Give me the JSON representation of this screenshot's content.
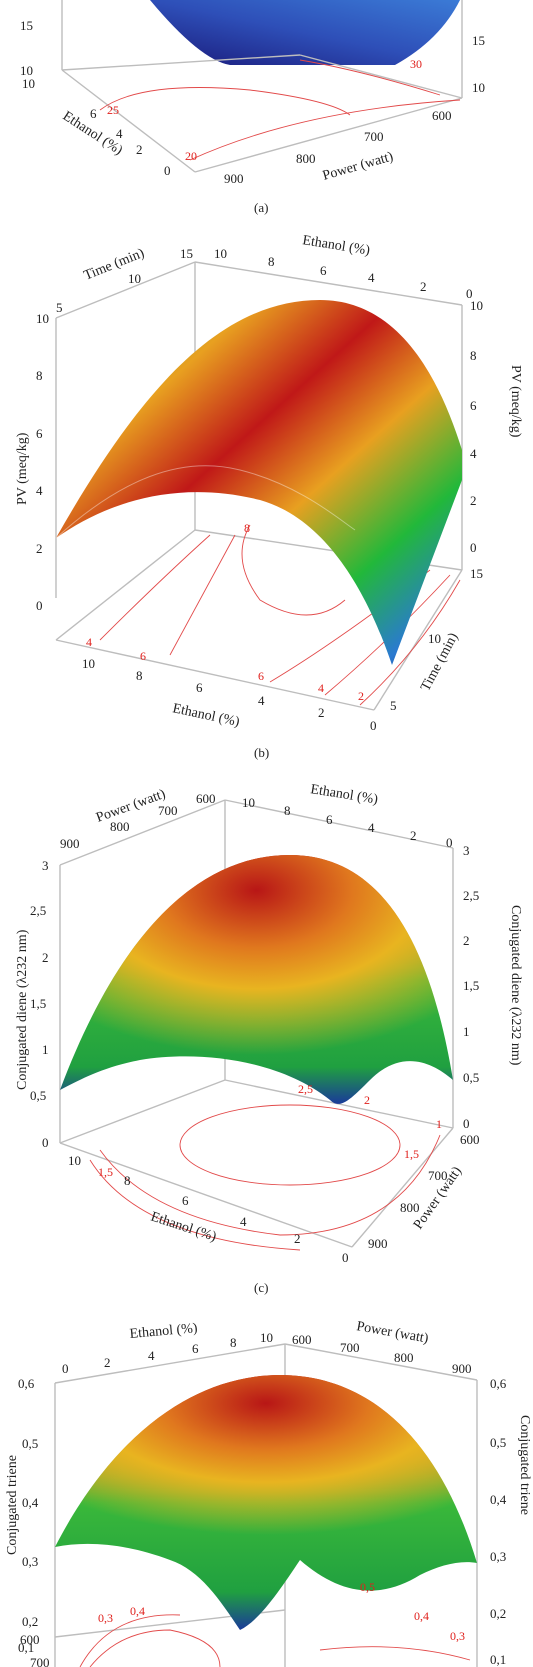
{
  "chart_data": [
    {
      "type": "surface",
      "caption": "(a)",
      "xlabel": "Ethanol (%)",
      "ylabel": "Power (watt)",
      "z_ticks": [
        "15",
        "10"
      ],
      "x_ticks": [
        "10",
        "6",
        "4",
        "2",
        "0"
      ],
      "y_ticks": [
        "900",
        "800",
        "700",
        "600"
      ],
      "right_z_ticks": [
        "15",
        "10"
      ],
      "contour_labels": [
        "30",
        "25",
        "20"
      ]
    },
    {
      "type": "surface",
      "caption": "(b)",
      "zlabel": "PV (meq/kg)",
      "xlabel": "Ethanol (%)",
      "ylabel": "Time (min)",
      "z_ticks": [
        "10",
        "8",
        "6",
        "4",
        "2",
        "0"
      ],
      "right_z_ticks": [
        "10",
        "8",
        "6",
        "4",
        "2",
        "0"
      ],
      "x_ticks": [
        "10",
        "8",
        "6",
        "4",
        "2",
        "0"
      ],
      "top_x_ticks": [
        "10",
        "8",
        "6",
        "4",
        "2",
        "0"
      ],
      "y_ticks": [
        "15",
        "10",
        "5"
      ],
      "top_y_ticks": [
        "15",
        "10",
        "5"
      ],
      "contour_labels": [
        "8",
        "4",
        "6",
        "6",
        "4",
        "2"
      ]
    },
    {
      "type": "surface",
      "caption": "(c)",
      "zlabel": "Conjugated diene (λ232 nm)",
      "xlabel": "Ethanol (%)",
      "ylabel": "Power (watt)",
      "z_ticks": [
        "3",
        "2,5",
        "2",
        "1,5",
        "1",
        "0,5",
        "0"
      ],
      "right_z_ticks": [
        "3",
        "2,5",
        "2",
        "1,5",
        "1",
        "0,5",
        "0"
      ],
      "x_ticks": [
        "10",
        "8",
        "6",
        "4",
        "2",
        "0"
      ],
      "top_x_ticks": [
        "10",
        "8",
        "6",
        "4",
        "2",
        "0"
      ],
      "y_ticks": [
        "600",
        "700",
        "800",
        "900"
      ],
      "top_y_ticks": [
        "900",
        "800",
        "700",
        "600"
      ],
      "contour_labels": [
        "2,5",
        "2",
        "1",
        "1,5",
        "1,5"
      ]
    },
    {
      "type": "surface",
      "zlabel": "Conjugated triene",
      "xlabel": "Ethanol (%)",
      "ylabel": "Power (watt)",
      "z_ticks": [
        "0,6",
        "0,5",
        "0,4",
        "0,3",
        "0,2",
        "0,1"
      ],
      "right_z_ticks": [
        "0,6",
        "0,5",
        "0,4",
        "0,3",
        "0,2",
        "0,1"
      ],
      "top_x_ticks": [
        "0",
        "2",
        "4",
        "6",
        "8",
        "10"
      ],
      "top_y_ticks": [
        "600",
        "700",
        "800",
        "900"
      ],
      "y_ticks": [
        "600",
        "700"
      ],
      "contour_labels": [
        "0,3",
        "0,4",
        "0,5",
        "0,4",
        "0,3"
      ]
    }
  ]
}
